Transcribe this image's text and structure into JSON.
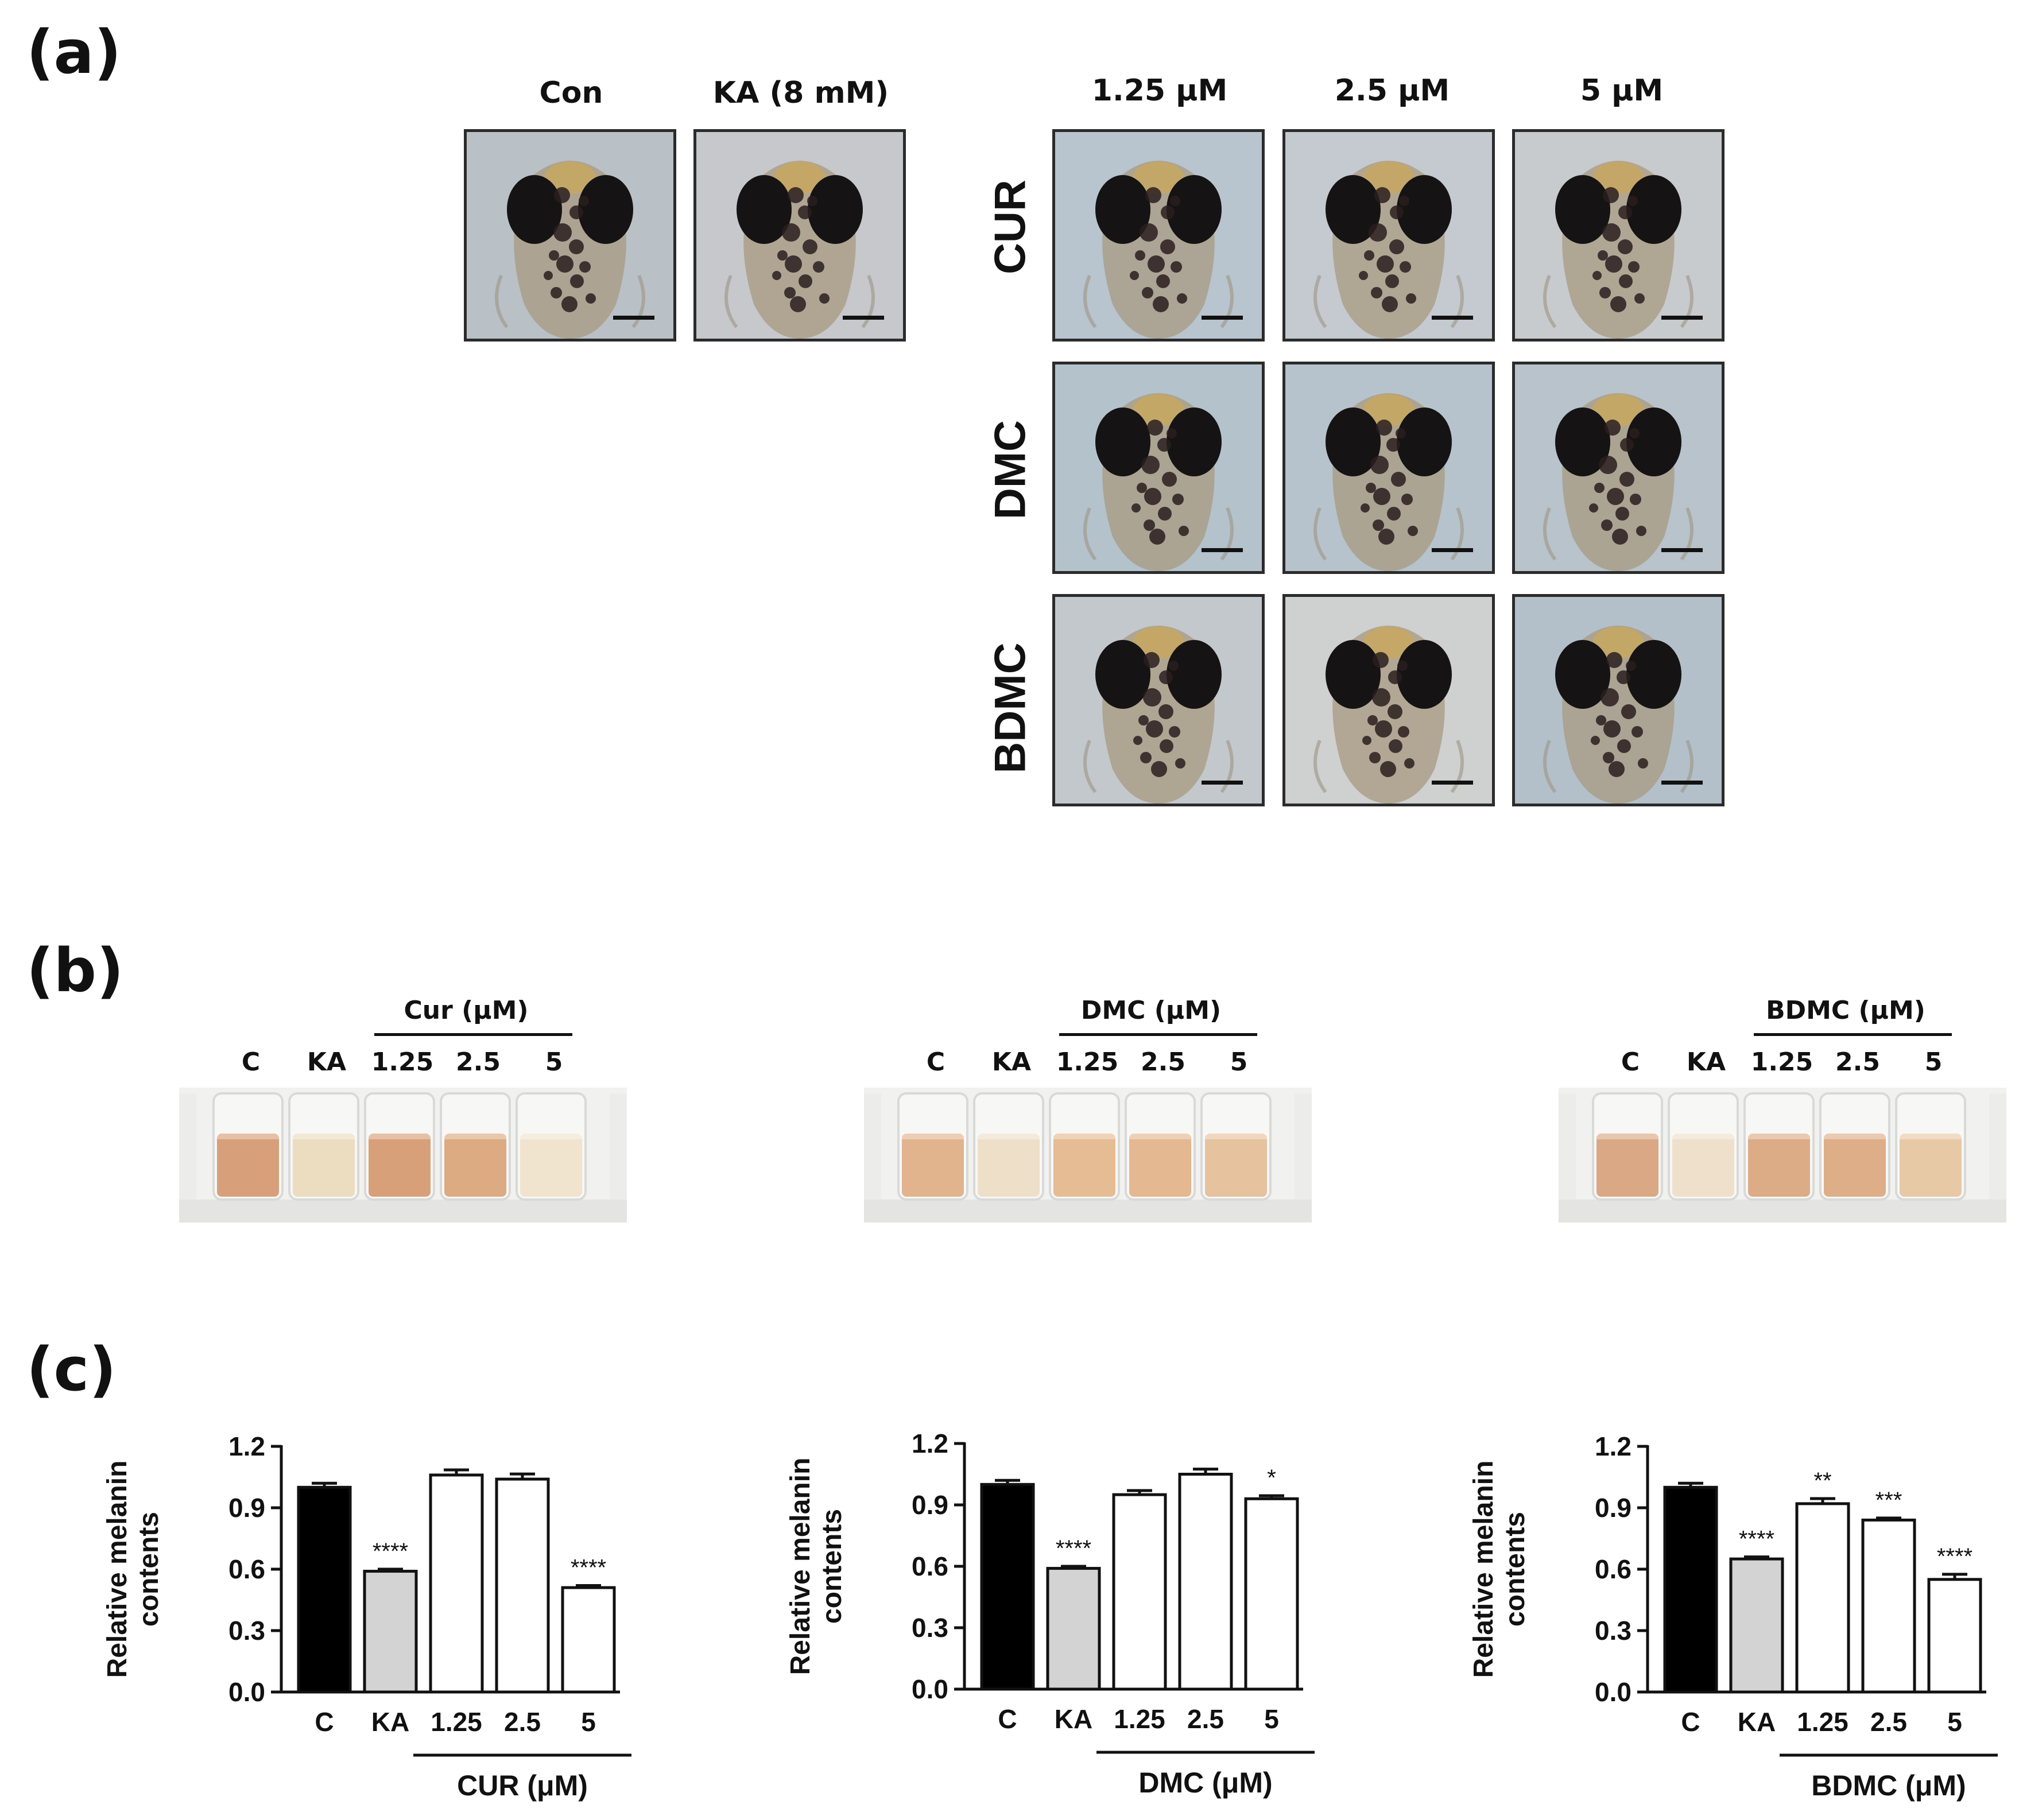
{
  "panels": {
    "a": "(a)",
    "b": "(b)",
    "c": "(c)"
  },
  "panel_a": {
    "control_labels": [
      "Con",
      "KA (8 mM)"
    ],
    "concentration_labels": [
      "1.25 μM",
      "2.5 μM",
      "5 μM"
    ],
    "row_labels": [
      "CUR",
      "DMC",
      "BDMC"
    ]
  },
  "panel_b": {
    "groups": [
      {
        "name": "Cur (μM)",
        "labels": [
          "C",
          "KA",
          "1.25",
          "2.5",
          "5"
        ]
      },
      {
        "name": "DMC (μM)",
        "labels": [
          "C",
          "KA",
          "1.25",
          "2.5",
          "5"
        ]
      },
      {
        "name": "BDMC (μM)",
        "labels": [
          "C",
          "KA",
          "1.25",
          "2.5",
          "5"
        ]
      }
    ],
    "colors": {
      "dark": "#d9a27a",
      "light": "#efe0c8",
      "medium": "#e3b78e"
    }
  },
  "chart_data": [
    {
      "type": "bar",
      "ylabel": "Relative melanin\ncontents",
      "ylim": [
        0,
        1.2
      ],
      "yticks": [
        "0.0",
        "0.3",
        "0.6",
        "0.9",
        "1.2"
      ],
      "categories": [
        "C",
        "KA",
        "1.25",
        "2.5",
        "5"
      ],
      "values": [
        1.0,
        0.59,
        1.06,
        1.04,
        0.51
      ],
      "errors": [
        0.02,
        0.01,
        0.025,
        0.025,
        0.01
      ],
      "significance": [
        "",
        "****",
        "",
        "",
        "****"
      ],
      "fills": [
        "#000000",
        "#d3d3d3",
        "#ffffff",
        "#ffffff",
        "#ffffff"
      ],
      "group_label": "CUR (μM)"
    },
    {
      "type": "bar",
      "ylabel": "Relative melanin\ncontents",
      "ylim": [
        0,
        1.2
      ],
      "yticks": [
        "0.0",
        "0.3",
        "0.6",
        "0.9",
        "1.2"
      ],
      "categories": [
        "C",
        "KA",
        "1.25",
        "2.5",
        "5"
      ],
      "values": [
        1.0,
        0.59,
        0.95,
        1.05,
        0.93
      ],
      "errors": [
        0.02,
        0.01,
        0.02,
        0.025,
        0.015
      ],
      "significance": [
        "",
        "****",
        "",
        "",
        "*"
      ],
      "fills": [
        "#000000",
        "#d3d3d3",
        "#ffffff",
        "#ffffff",
        "#ffffff"
      ],
      "group_label": "DMC (μM)"
    },
    {
      "type": "bar",
      "ylabel": "Relative melanin\ncontents",
      "ylim": [
        0,
        1.2
      ],
      "yticks": [
        "0.0",
        "0.3",
        "0.6",
        "0.9",
        "1.2"
      ],
      "categories": [
        "C",
        "KA",
        "1.25",
        "2.5",
        "5"
      ],
      "values": [
        1.0,
        0.65,
        0.92,
        0.84,
        0.55
      ],
      "errors": [
        0.02,
        0.01,
        0.025,
        0.01,
        0.025
      ],
      "significance": [
        "",
        "****",
        "**",
        "***",
        "****"
      ],
      "fills": [
        "#000000",
        "#d3d3d3",
        "#ffffff",
        "#ffffff",
        "#ffffff"
      ],
      "group_label": "BDMC (μM)"
    }
  ]
}
